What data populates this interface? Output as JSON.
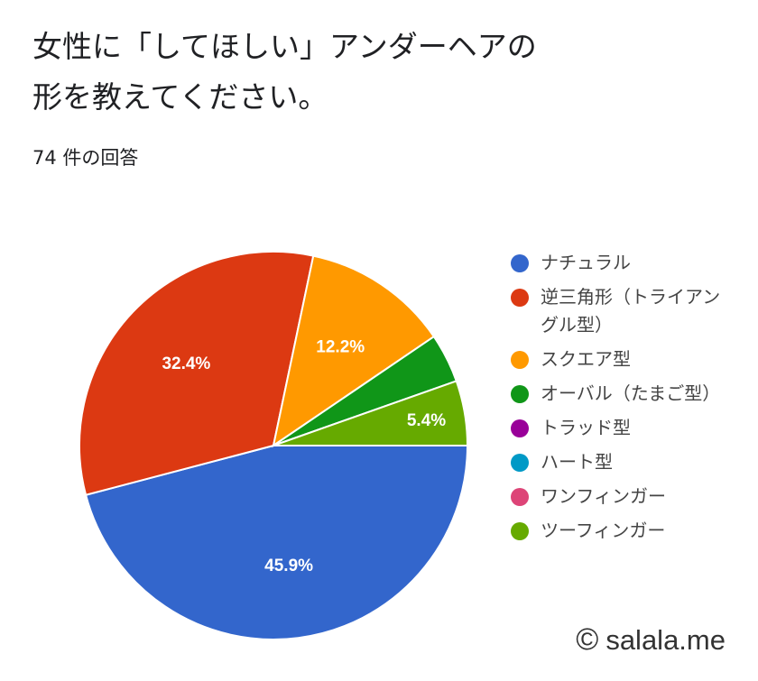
{
  "title": "女性に「してほしい」アンダーヘアの\n形を教えてください。",
  "response_count": "74 件の回答",
  "watermark": {
    "symbol": "©",
    "text": "salala.me"
  },
  "chart_data": {
    "type": "pie",
    "legend_position": "right",
    "start": "right, counterclockwise",
    "slices": [
      {
        "label": "ナチュラル",
        "percent": 45.9,
        "value_label": "45.9%",
        "color": "#3366cc"
      },
      {
        "label": "逆三角形（トライアングル型）",
        "percent": 32.4,
        "value_label": "32.4%",
        "color": "#dc3912"
      },
      {
        "label": "スクエア型",
        "percent": 12.2,
        "value_label": "12.2%",
        "color": "#ff9900"
      },
      {
        "label": "オーバル（たまご型）",
        "percent": 4.1,
        "value_label": "",
        "color": "#109618"
      },
      {
        "label": "トラッド型",
        "percent": 0,
        "value_label": "",
        "color": "#990099"
      },
      {
        "label": "ハート型",
        "percent": 0,
        "value_label": "",
        "color": "#0099c6"
      },
      {
        "label": "ワンフィンガー",
        "percent": 0,
        "value_label": "",
        "color": "#dd4477"
      },
      {
        "label": "ツーフィンガー",
        "percent": 5.4,
        "value_label": "5.4%",
        "color": "#66aa00"
      }
    ]
  }
}
